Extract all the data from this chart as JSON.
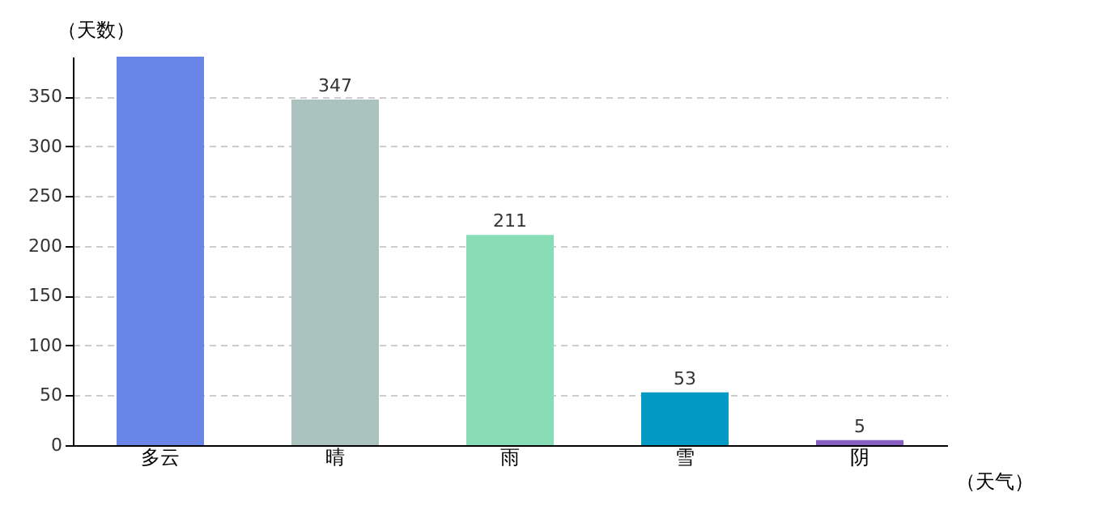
{
  "chart_data": {
    "type": "bar",
    "xlabel": "（天气）",
    "ylabel": "（天数）",
    "categories": [
      "多云",
      "晴",
      "雨",
      "雪",
      "阴"
    ],
    "values": [
      390,
      347,
      211,
      53,
      5
    ],
    "colors": [
      "#6a85e8",
      "#abc3bf",
      "#88dcb6",
      "#049ac5",
      "#875fc1"
    ],
    "value_labels": [
      null,
      "347",
      "211",
      "53",
      "5"
    ],
    "ylim": [
      0,
      390
    ],
    "yticks": [
      0,
      50,
      100,
      150,
      200,
      250,
      300,
      350
    ],
    "grid": "y"
  }
}
